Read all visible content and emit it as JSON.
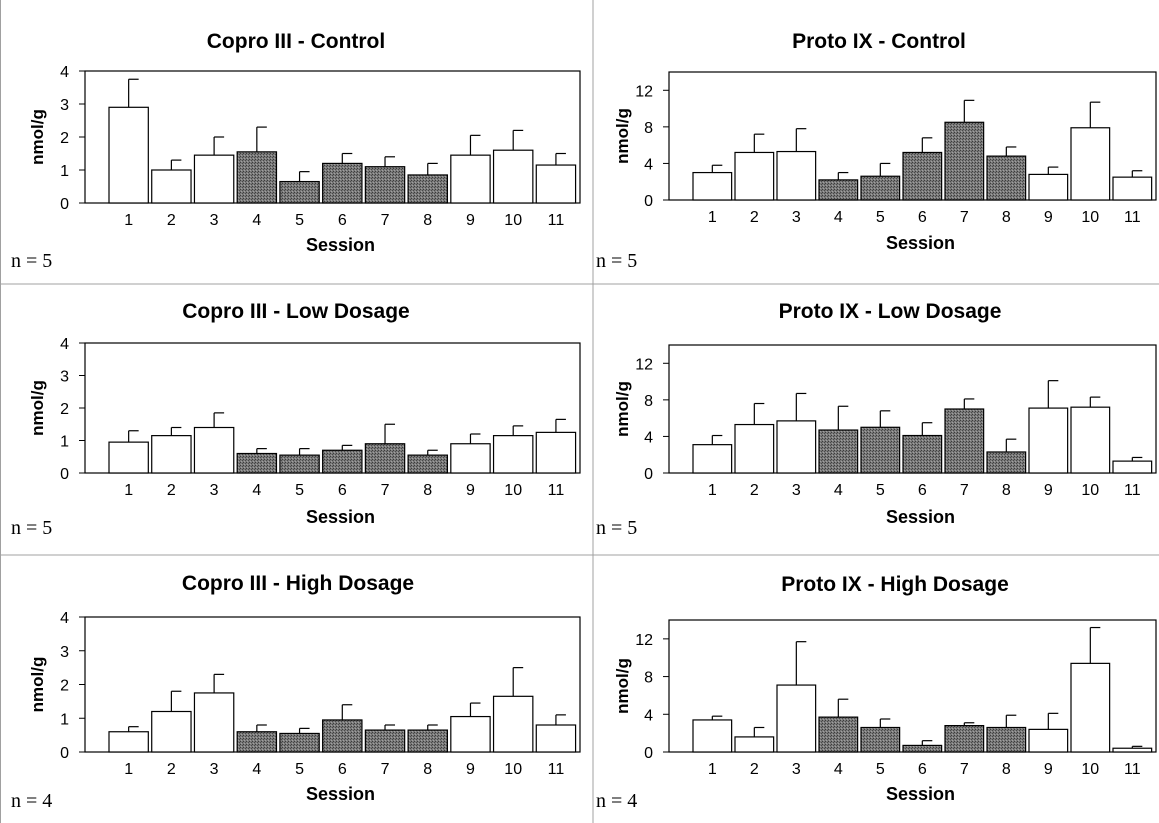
{
  "chart_data": [
    {
      "type": "bar",
      "title": "Copro III - Control",
      "xlabel": "Session",
      "ylabel": "nmol/g",
      "ylim": [
        0,
        4
      ],
      "yticks": [
        "0",
        "1",
        "2",
        "3",
        "4"
      ],
      "categories": [
        "1",
        "2",
        "3",
        "4",
        "5",
        "6",
        "7",
        "8",
        "9",
        "10",
        "11"
      ],
      "values": [
        2.9,
        1.0,
        1.45,
        1.55,
        0.65,
        1.2,
        1.1,
        0.85,
        1.45,
        1.6,
        1.15
      ],
      "error": [
        0.85,
        0.3,
        0.55,
        0.75,
        0.3,
        0.3,
        0.3,
        0.35,
        0.6,
        0.6,
        0.35
      ],
      "shaded": [
        false,
        false,
        false,
        true,
        true,
        true,
        true,
        true,
        false,
        false,
        false
      ],
      "note": "n = 5"
    },
    {
      "type": "bar",
      "title": "Proto IX - Control",
      "xlabel": "Session",
      "ylabel": "nmol/g",
      "ylim": [
        0,
        14
      ],
      "yticks": [
        "0",
        "4",
        "8",
        "12"
      ],
      "categories": [
        "1",
        "2",
        "3",
        "4",
        "5",
        "6",
        "7",
        "8",
        "9",
        "10",
        "11"
      ],
      "values": [
        3.0,
        5.2,
        5.3,
        2.2,
        2.6,
        5.2,
        8.5,
        4.8,
        2.8,
        7.9,
        2.5
      ],
      "error": [
        0.8,
        2.0,
        2.5,
        0.8,
        1.4,
        1.6,
        2.4,
        1.0,
        0.8,
        2.8,
        0.7
      ],
      "shaded": [
        false,
        false,
        false,
        true,
        true,
        true,
        true,
        true,
        false,
        false,
        false
      ],
      "note": "n = 5"
    },
    {
      "type": "bar",
      "title": "Copro III - Low Dosage",
      "xlabel": "Session",
      "ylabel": "nmol/g",
      "ylim": [
        0,
        4
      ],
      "yticks": [
        "0",
        "1",
        "2",
        "3",
        "4"
      ],
      "categories": [
        "1",
        "2",
        "3",
        "4",
        "5",
        "6",
        "7",
        "8",
        "9",
        "10",
        "11"
      ],
      "values": [
        0.95,
        1.15,
        1.4,
        0.6,
        0.55,
        0.7,
        0.9,
        0.55,
        0.9,
        1.15,
        1.25
      ],
      "error": [
        0.35,
        0.25,
        0.45,
        0.15,
        0.2,
        0.15,
        0.6,
        0.15,
        0.3,
        0.3,
        0.4
      ],
      "shaded": [
        false,
        false,
        false,
        true,
        true,
        true,
        true,
        true,
        false,
        false,
        false
      ],
      "note": "n = 5"
    },
    {
      "type": "bar",
      "title": "Proto IX - Low Dosage",
      "xlabel": "Session",
      "ylabel": "nmol/g",
      "ylim": [
        0,
        14
      ],
      "yticks": [
        "0",
        "4",
        "8",
        "12"
      ],
      "categories": [
        "1",
        "2",
        "3",
        "4",
        "5",
        "6",
        "7",
        "8",
        "9",
        "10",
        "11"
      ],
      "values": [
        3.1,
        5.3,
        5.7,
        4.7,
        5.0,
        4.1,
        7.0,
        2.3,
        7.1,
        7.2,
        1.3
      ],
      "error": [
        1.0,
        2.3,
        3.0,
        2.6,
        1.8,
        1.4,
        1.1,
        1.4,
        3.0,
        1.1,
        0.4
      ],
      "shaded": [
        false,
        false,
        false,
        true,
        true,
        true,
        true,
        true,
        false,
        false,
        false
      ],
      "note": "n = 5"
    },
    {
      "type": "bar",
      "title": "Copro III - High Dosage",
      "xlabel": "Session",
      "ylabel": "nmol/g",
      "ylim": [
        0,
        4
      ],
      "yticks": [
        "0",
        "1",
        "2",
        "3",
        "4"
      ],
      "categories": [
        "1",
        "2",
        "3",
        "4",
        "5",
        "6",
        "7",
        "8",
        "9",
        "10",
        "11"
      ],
      "values": [
        0.6,
        1.2,
        1.75,
        0.6,
        0.55,
        0.95,
        0.65,
        0.65,
        1.05,
        1.65,
        0.8
      ],
      "error": [
        0.15,
        0.6,
        0.55,
        0.2,
        0.15,
        0.45,
        0.15,
        0.15,
        0.4,
        0.85,
        0.3
      ],
      "shaded": [
        false,
        false,
        false,
        true,
        true,
        true,
        true,
        true,
        false,
        false,
        false
      ],
      "note": "n = 4"
    },
    {
      "type": "bar",
      "title": "Proto IX - High Dosage",
      "xlabel": "Session",
      "ylabel": "nmol/g",
      "ylim": [
        0,
        14
      ],
      "yticks": [
        "0",
        "4",
        "8",
        "12"
      ],
      "categories": [
        "1",
        "2",
        "3",
        "4",
        "5",
        "6",
        "7",
        "8",
        "9",
        "10",
        "11"
      ],
      "values": [
        3.4,
        1.6,
        7.1,
        3.7,
        2.6,
        0.7,
        2.8,
        2.6,
        2.4,
        9.4,
        0.4
      ],
      "error": [
        0.4,
        1.0,
        4.6,
        1.9,
        0.9,
        0.5,
        0.3,
        1.3,
        1.7,
        3.8,
        0.2
      ],
      "shaded": [
        false,
        false,
        false,
        true,
        true,
        true,
        true,
        true,
        false,
        false,
        false
      ],
      "note": "n = 4"
    }
  ],
  "colors": {
    "shaded_bar": "#6e6e6e",
    "open_bar": "#ffffff",
    "stroke": "#000000",
    "frame": "#a0a0a0"
  }
}
